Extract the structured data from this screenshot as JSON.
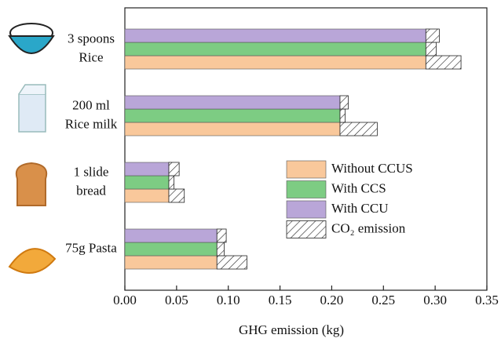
{
  "chart_data": {
    "type": "bar",
    "orientation": "horizontal",
    "x_label": "GHG emission (kg)",
    "categories": [
      "3 spoons\nRice",
      "200 ml\nRice milk",
      "1 slide\nbread",
      "75g Pasta"
    ],
    "series": [
      {
        "name": "Without CCUS",
        "color": "#f9c89b",
        "values": [
          0.291,
          0.208,
          0.0425,
          0.089
        ],
        "co2_values": [
          0.034,
          0.036,
          0.015,
          0.029
        ]
      },
      {
        "name": "With CCS",
        "color": "#7dcc83",
        "values": [
          0.291,
          0.208,
          0.0425,
          0.089
        ],
        "co2_values": [
          0.01,
          0.005,
          0.005,
          0.007
        ]
      },
      {
        "name": "With CCU",
        "color": "#b9a6d8",
        "values": [
          0.291,
          0.208,
          0.0425,
          0.089
        ],
        "co2_values": [
          0.013,
          0.008,
          0.01,
          0.009
        ]
      }
    ],
    "hatch_name": "CO₂ emission",
    "xlim": [
      0,
      0.35
    ],
    "xticks": [
      {
        "value": 0,
        "label": "0.00"
      },
      {
        "value": 0.05,
        "label": "0.05"
      },
      {
        "value": 0.1,
        "label": "0.10"
      },
      {
        "value": 0.15,
        "label": "0.15"
      },
      {
        "value": 0.2,
        "label": "0.20"
      },
      {
        "value": 0.25,
        "label": "0.25"
      },
      {
        "value": 0.3,
        "label": "0.30"
      },
      {
        "value": 0.35,
        "label": "0.35"
      }
    ]
  }
}
